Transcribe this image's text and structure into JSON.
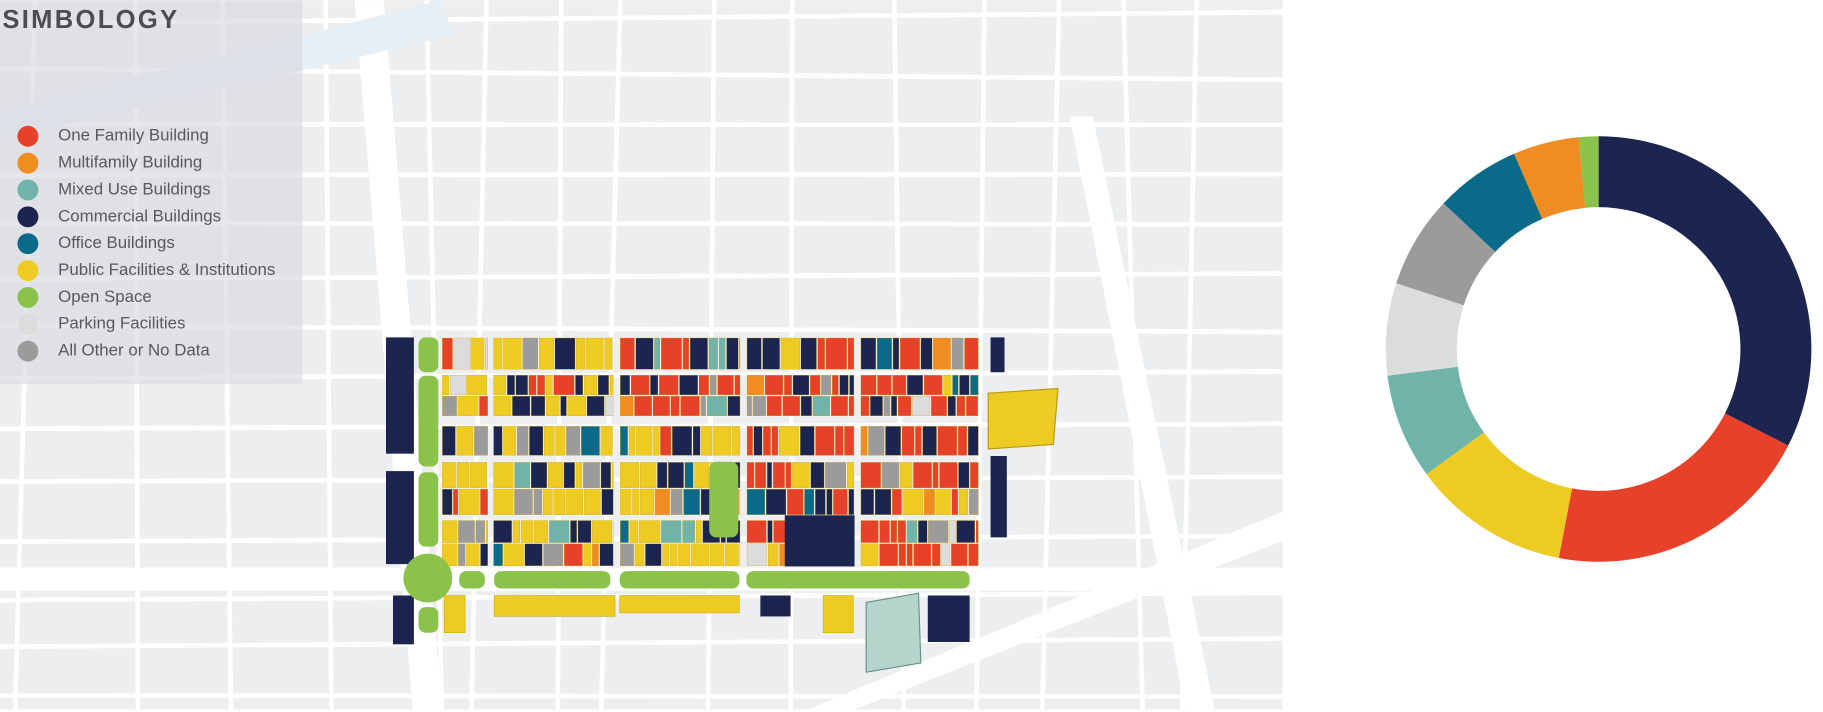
{
  "chart_data": {
    "type": "pie",
    "title": "SIMBOLOGY",
    "categories": [
      "One Family Building",
      "Multifamily Building",
      "Mixed Use Buildings",
      "Commercial Buildings",
      "Office Buildings",
      "Public Facilities & Institutions",
      "Open Space",
      "Parking Facilities",
      "All Other or No Data"
    ],
    "values": [
      20.5,
      5,
      8,
      32.5,
      6.5,
      12,
      1.5,
      7,
      7
    ],
    "colors": [
      "#e8412a",
      "#ef8c22",
      "#70b3a8",
      "#1c2550",
      "#0b6a8a",
      "#edcb23",
      "#8bc34a",
      "#dcdcdc",
      "#9b9b9b"
    ],
    "donut": true
  }
}
